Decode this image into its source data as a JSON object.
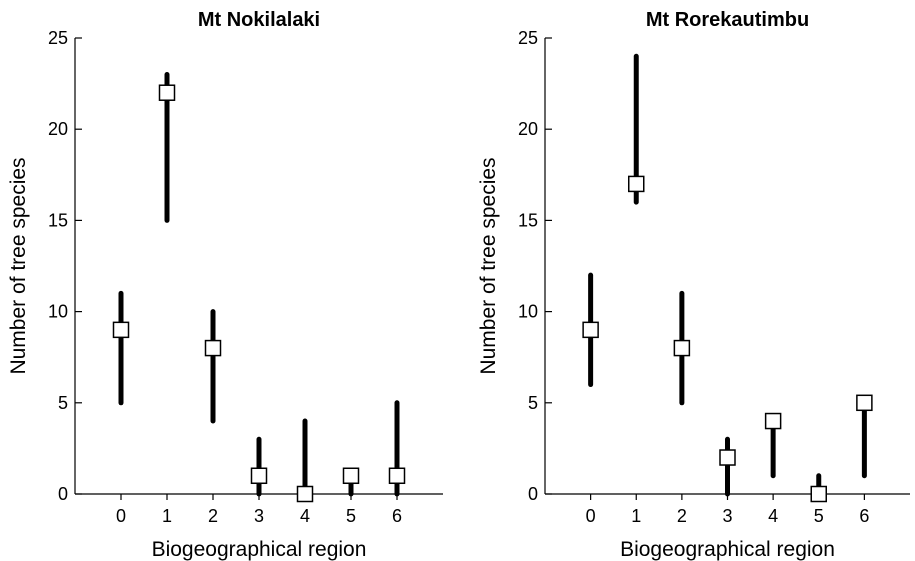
{
  "chart_data": [
    {
      "type": "scatter",
      "title": "Mt Nokilalaki",
      "xlabel": "Biogeographical region",
      "ylabel": "Number of tree species",
      "x": [
        0,
        1,
        2,
        3,
        4,
        5,
        6
      ],
      "xtick_labels": [
        "0",
        "1",
        "2",
        "3",
        "4",
        "5",
        "6"
      ],
      "y": [
        9,
        22,
        8,
        1,
        0,
        1,
        1
      ],
      "range_low": [
        5,
        15,
        4,
        0,
        0,
        0,
        0
      ],
      "range_high": [
        11,
        23,
        10,
        3,
        4,
        1,
        5
      ],
      "xlim": [
        -1,
        7
      ],
      "ylim": [
        0,
        25
      ],
      "yticks": [
        0,
        5,
        10,
        15,
        20,
        25
      ],
      "ytick_labels": [
        "0",
        "5",
        "10",
        "15",
        "20",
        "25"
      ],
      "marker": "open-square",
      "range_color": "#000000",
      "grid": false,
      "legend": "none"
    },
    {
      "type": "scatter",
      "title": "Mt Rorekautimbu",
      "xlabel": "Biogeographical region",
      "ylabel": "Number of tree species",
      "x": [
        0,
        1,
        2,
        3,
        4,
        5,
        6
      ],
      "xtick_labels": [
        "0",
        "1",
        "2",
        "3",
        "4",
        "5",
        "6"
      ],
      "y": [
        9,
        17,
        8,
        2,
        4,
        0,
        5
      ],
      "range_low": [
        6,
        16,
        5,
        0,
        1,
        0,
        1
      ],
      "range_high": [
        12,
        24,
        11,
        3,
        4,
        1,
        5
      ],
      "xlim": [
        -1,
        7
      ],
      "ylim": [
        0,
        25
      ],
      "yticks": [
        0,
        5,
        10,
        15,
        20,
        25
      ],
      "ytick_labels": [
        "0",
        "5",
        "10",
        "15",
        "20",
        "25"
      ],
      "marker": "open-square",
      "range_color": "#000000",
      "grid": false,
      "legend": "none"
    }
  ]
}
